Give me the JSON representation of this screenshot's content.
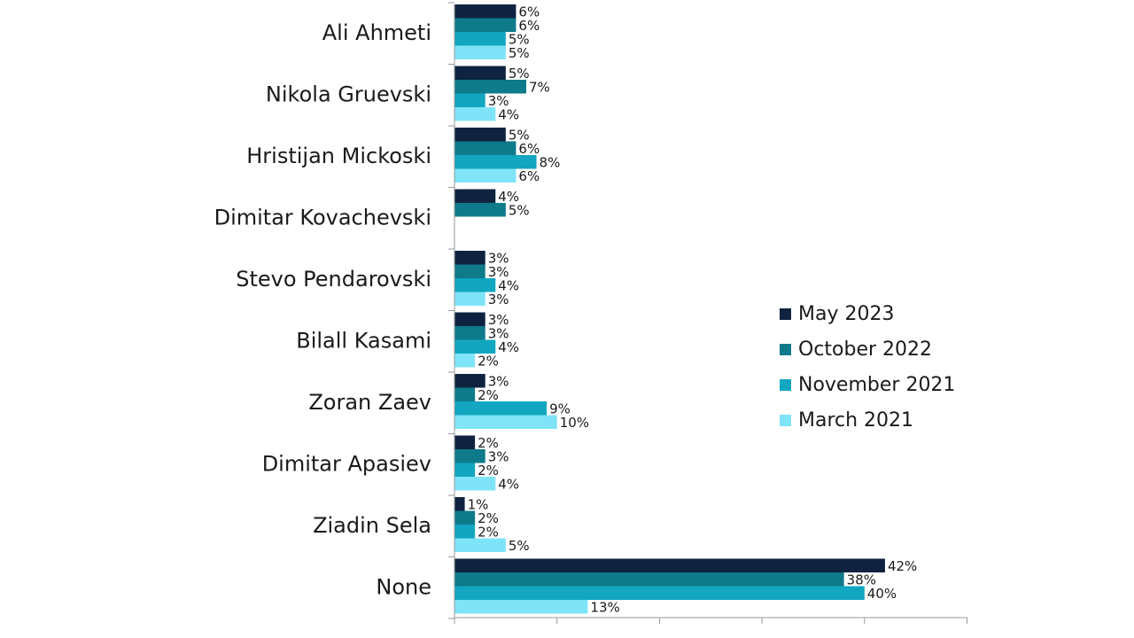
{
  "chart_data": {
    "type": "bar",
    "orientation": "horizontal",
    "categories": [
      "Ali Ahmeti",
      "Nikola Gruevski",
      "Hristijan Mickoski",
      "Dimitar Kovachevski",
      "Stevo Pendarovski",
      "Bilall Kasami",
      "Zoran Zaev",
      "Dimitar Apasiev",
      "Ziadin Sela",
      "None"
    ],
    "series": [
      {
        "name": "May 2023",
        "color": "#0f2340",
        "values": [
          6,
          5,
          5,
          4,
          3,
          3,
          3,
          2,
          1,
          42
        ]
      },
      {
        "name": "October 2022",
        "color": "#0e7a8a",
        "values": [
          6,
          7,
          6,
          5,
          3,
          3,
          2,
          3,
          2,
          38
        ]
      },
      {
        "name": "November 2021",
        "color": "#12a6c0",
        "values": [
          5,
          3,
          8,
          null,
          4,
          4,
          9,
          2,
          2,
          40
        ]
      },
      {
        "name": "March 2021",
        "color": "#7fe4f7",
        "values": [
          5,
          4,
          6,
          null,
          3,
          2,
          10,
          4,
          5,
          13
        ]
      }
    ],
    "value_labels": [
      [
        "6%",
        "6%",
        "5%",
        "5%"
      ],
      [
        "5%",
        "7%",
        "3%",
        "4%"
      ],
      [
        "5%",
        "6%",
        "8%",
        "6%"
      ],
      [
        "4%",
        "5%",
        null,
        null
      ],
      [
        "3%",
        "3%",
        "4%",
        "3%"
      ],
      [
        "3%",
        "3%",
        "4%",
        "2%"
      ],
      [
        "3%",
        "2%",
        "9%",
        "10%"
      ],
      [
        "2%",
        "3%",
        "2%",
        "4%"
      ],
      [
        "1%",
        "2%",
        "2%",
        "5%"
      ],
      [
        "42%",
        "38%",
        "40%",
        "13%"
      ]
    ],
    "xlim": [
      0,
      50
    ],
    "x_tick_values": [
      0,
      10,
      20,
      30,
      40,
      50
    ],
    "tick_labels_shown": false,
    "legend_position": "right",
    "grid": false
  }
}
